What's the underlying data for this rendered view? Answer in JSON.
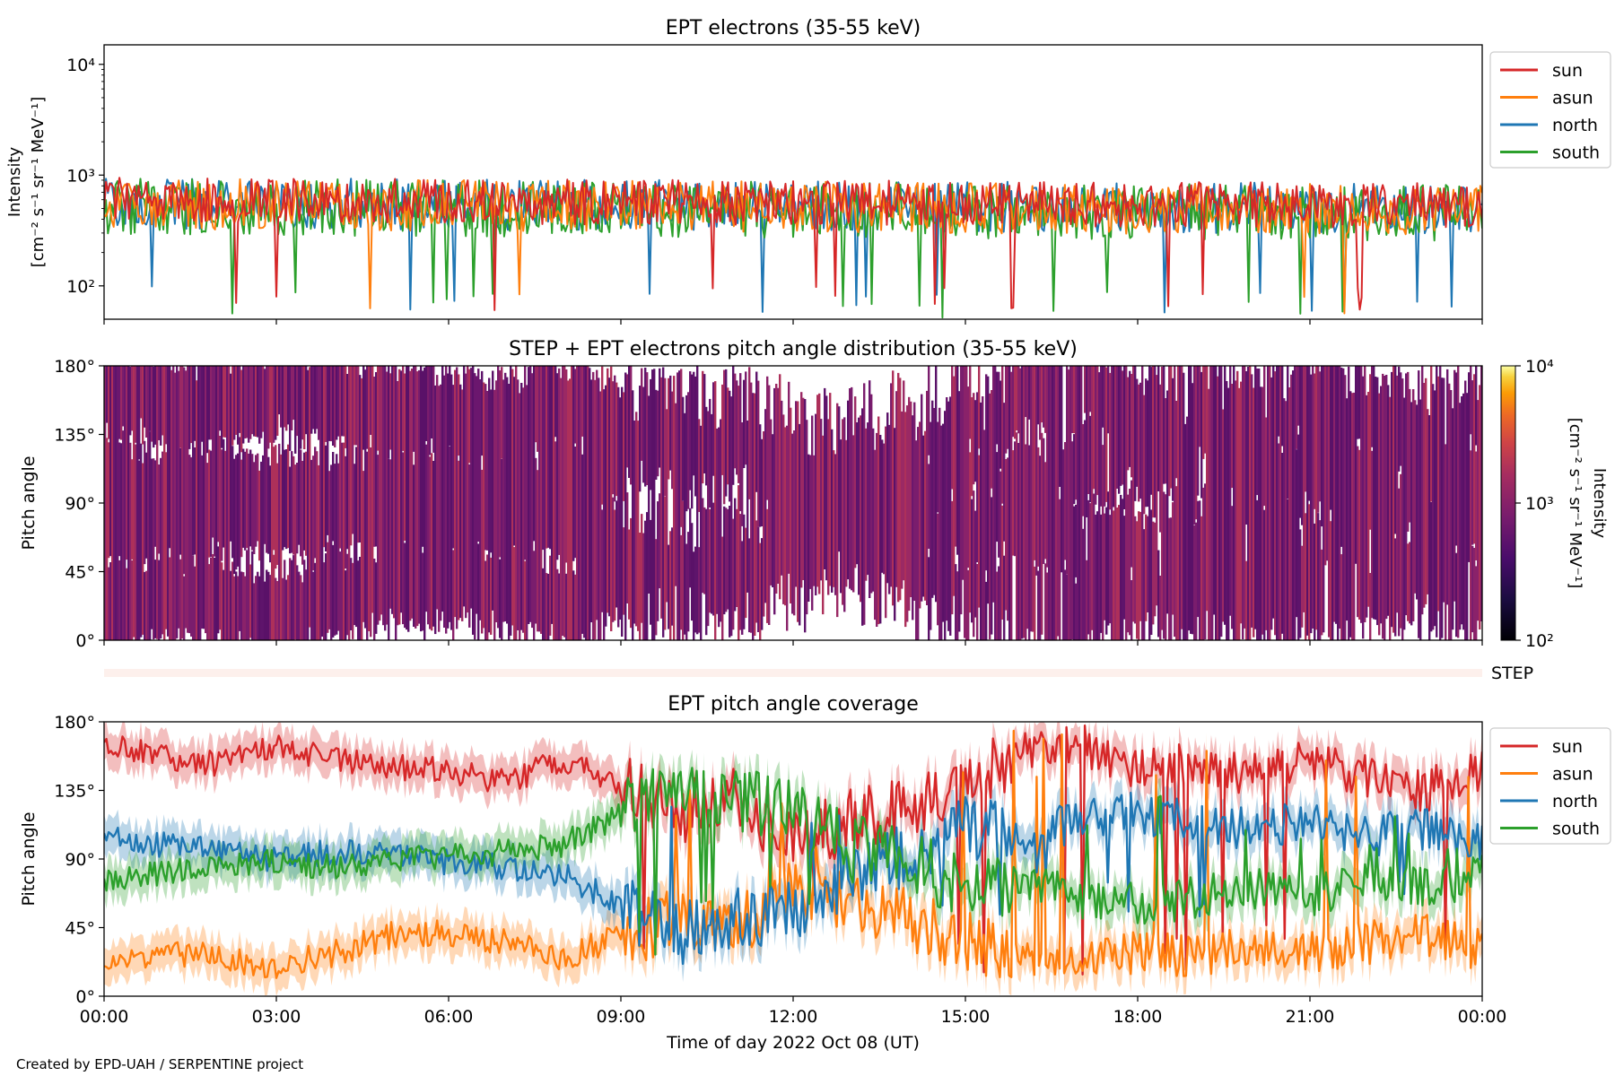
{
  "figure": {
    "credit": "Created by EPD-UAH / SERPENTINE project",
    "xlabel": "Time of day 2022 Oct 08 (UT)",
    "x_ticks": [
      "00:00",
      "03:00",
      "06:00",
      "09:00",
      "12:00",
      "15:00",
      "18:00",
      "21:00",
      "00:00"
    ]
  },
  "colors": {
    "sun": "#d62728",
    "asun": "#ff7f0e",
    "north": "#1f77b4",
    "south": "#2ca02c"
  },
  "chart_data": [
    {
      "type": "line",
      "title": "EPT electrons (35-55 keV)",
      "ylabel_line1": "Intensity",
      "ylabel_line2": "[cm⁻² s⁻¹ sr⁻¹ MeV⁻¹]",
      "yscale": "log",
      "ylim": [
        50,
        15000
      ],
      "y_ticks": [
        {
          "value": 100,
          "label": "10²"
        },
        {
          "value": 1000,
          "label": "10³"
        },
        {
          "value": 10000,
          "label": "10⁴"
        }
      ],
      "x_range_hours": [
        0,
        24
      ],
      "legend": [
        "sun",
        "asun",
        "north",
        "south"
      ],
      "legend_position": "outside-right",
      "series": [
        {
          "name": "sun",
          "typical_value": 600,
          "spread_factor": 1.6,
          "min": 55,
          "max": 1300
        },
        {
          "name": "asun",
          "typical_value": 550,
          "spread_factor": 1.7,
          "min": 50,
          "max": 1400
        },
        {
          "name": "north",
          "typical_value": 560,
          "spread_factor": 1.7,
          "min": 55,
          "max": 1250
        },
        {
          "name": "south",
          "typical_value": 520,
          "spread_factor": 1.8,
          "min": 50,
          "max": 1600
        }
      ]
    },
    {
      "type": "heatmap",
      "title": "STEP + EPT electrons pitch angle distribution (35-55 keV)",
      "ylabel": "Pitch angle",
      "ylim": [
        0,
        180
      ],
      "y_ticks": [
        "0°",
        "45°",
        "90°",
        "135°",
        "180°"
      ],
      "colormap": "inferno",
      "colorbar_label_line1": "Intensity",
      "colorbar_label_line2": "[cm⁻² s⁻¹ sr⁻¹ MeV⁻¹]",
      "colorbar_range": [
        100,
        10000
      ],
      "colorbar_ticks": [
        "10²",
        "10³",
        "10⁴"
      ],
      "typical_intensity": 700
    },
    {
      "type": "heatmap",
      "label": "STEP",
      "note": "empty strip"
    },
    {
      "type": "line",
      "title": "EPT pitch angle coverage",
      "ylabel": "Pitch angle",
      "ylim": [
        0,
        180
      ],
      "y_ticks": [
        "0°",
        "45°",
        "90°",
        "135°",
        "180°"
      ],
      "legend": [
        "sun",
        "asun",
        "north",
        "south"
      ],
      "legend_position": "outside-right",
      "series": [
        {
          "name": "sun",
          "hours": [
            0,
            1,
            2,
            3,
            4,
            5,
            6,
            7,
            8,
            9,
            10,
            11,
            12,
            13,
            14,
            15,
            16,
            17,
            18,
            19,
            20,
            21,
            22,
            23,
            24
          ],
          "pitch_deg": [
            165,
            158,
            152,
            165,
            155,
            150,
            148,
            140,
            155,
            140,
            120,
            130,
            100,
            115,
            125,
            140,
            160,
            165,
            150,
            155,
            145,
            155,
            145,
            135,
            150
          ]
        },
        {
          "name": "asun",
          "hours": [
            0,
            1,
            2,
            3,
            4,
            5,
            6,
            7,
            8,
            9,
            10,
            11,
            12,
            13,
            14,
            15,
            16,
            17,
            18,
            19,
            20,
            21,
            22,
            23,
            24
          ],
          "pitch_deg": [
            18,
            30,
            25,
            20,
            28,
            40,
            42,
            35,
            25,
            40,
            50,
            45,
            70,
            60,
            50,
            35,
            25,
            20,
            30,
            25,
            35,
            28,
            35,
            40,
            30
          ]
        },
        {
          "name": "north",
          "hours": [
            0,
            1,
            2,
            3,
            4,
            5,
            6,
            7,
            8,
            9,
            10,
            11,
            12,
            13,
            14,
            15,
            16,
            17,
            18,
            19,
            20,
            21,
            22,
            23,
            24
          ],
          "pitch_deg": [
            105,
            100,
            95,
            90,
            95,
            92,
            88,
            85,
            80,
            60,
            40,
            50,
            55,
            80,
            90,
            110,
            105,
            115,
            120,
            115,
            110,
            115,
            105,
            110,
            100
          ]
        },
        {
          "name": "south",
          "hours": [
            0,
            1,
            2,
            3,
            4,
            5,
            6,
            7,
            8,
            9,
            10,
            11,
            12,
            13,
            14,
            15,
            16,
            17,
            18,
            19,
            20,
            21,
            22,
            23,
            24
          ],
          "pitch_deg": [
            75,
            80,
            85,
            88,
            85,
            90,
            92,
            95,
            100,
            120,
            140,
            130,
            120,
            100,
            90,
            70,
            75,
            65,
            60,
            65,
            70,
            65,
            75,
            70,
            80
          ]
        }
      ]
    }
  ]
}
